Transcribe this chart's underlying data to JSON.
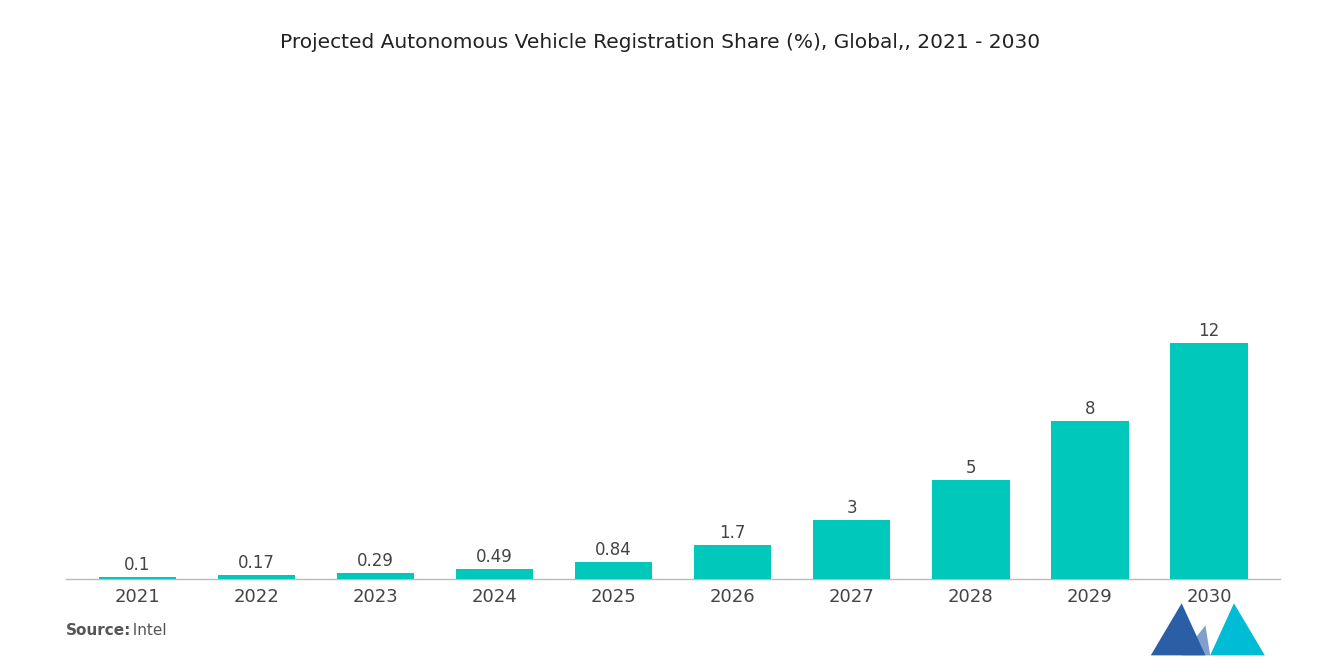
{
  "title": "Projected Autonomous Vehicle Registration Share (%), Global,, 2021 - 2030",
  "categories": [
    "2021",
    "2022",
    "2023",
    "2024",
    "2025",
    "2026",
    "2027",
    "2028",
    "2029",
    "2030"
  ],
  "values": [
    0.1,
    0.17,
    0.29,
    0.49,
    0.84,
    1.7,
    3,
    5,
    8,
    12
  ],
  "bar_color": "#00C9BC",
  "label_values": [
    "0.1",
    "0.17",
    "0.29",
    "0.49",
    "0.84",
    "1.7",
    "3",
    "5",
    "8",
    "12"
  ],
  "background_color": "#ffffff",
  "source_bold": "Source:",
  "source_normal": "  Intel",
  "ylim": [
    0,
    22
  ],
  "title_fontsize": 14.5,
  "label_fontsize": 12,
  "tick_fontsize": 13,
  "logo_color1": "#2b5fa5",
  "logo_color2": "#00bcd4"
}
